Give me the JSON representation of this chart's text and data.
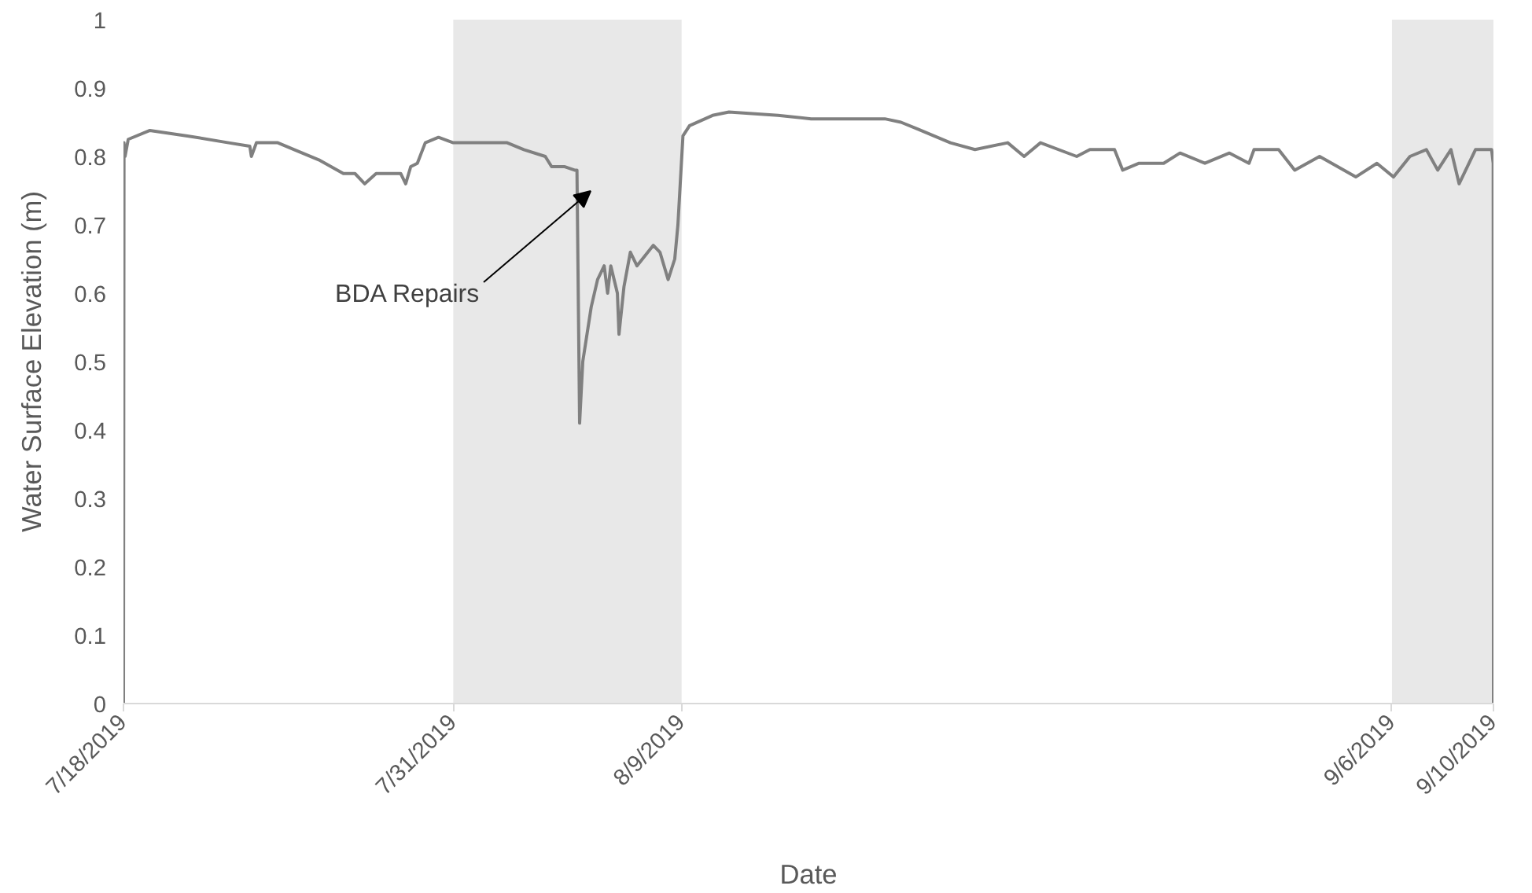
{
  "chart_data": {
    "type": "line",
    "xlabel": "Date",
    "ylabel": "Water Surface Elevation (m)",
    "xlim": [
      "2019-07-18",
      "2019-09-10"
    ],
    "ylim": [
      0,
      1
    ],
    "xticks": [
      {
        "value": "2019-07-18",
        "label": "7/18/2019"
      },
      {
        "value": "2019-07-31",
        "label": "7/31/2019"
      },
      {
        "value": "2019-08-09",
        "label": "8/9/2019"
      },
      {
        "value": "2019-09-06",
        "label": "9/6/2019"
      },
      {
        "value": "2019-09-10",
        "label": "9/10/2019"
      }
    ],
    "yticks": [
      0,
      0.1,
      0.2,
      0.3,
      0.4,
      0.5,
      0.6,
      0.7,
      0.8,
      0.9,
      1
    ],
    "grid": false,
    "marker": "none",
    "line_style": "solid",
    "bands": [
      {
        "axis": "x",
        "from": "2019-07-31",
        "to": "2019-08-09",
        "color": "#e8e8e8"
      },
      {
        "axis": "x",
        "from": "2019-09-06",
        "to": "2019-09-10",
        "color": "#e8e8e8"
      }
    ],
    "annotations": [
      "BDA Repairs"
    ],
    "series": [
      {
        "color": "#808080",
        "x": [
          "2019-07-18T00:00",
          "2019-07-18T00:30",
          "2019-07-18T01:30",
          "2019-07-18T04:30",
          "2019-07-19T01:00",
          "2019-07-20T12:30",
          "2019-07-22T03:30",
          "2019-07-22T23:30",
          "2019-07-23T01:00",
          "2019-07-23T05:45",
          "2019-07-24T02:00",
          "2019-07-24T17:30",
          "2019-07-25T16:45",
          "2019-07-26T16:00",
          "2019-07-27T03:00",
          "2019-07-27T12:15",
          "2019-07-27T23:00",
          "2019-07-28T22:15",
          "2019-07-29T03:00",
          "2019-07-29T07:45",
          "2019-07-29T14:00",
          "2019-07-29T21:30",
          "2019-07-30T10:00",
          "2019-07-31T00:00",
          "2019-08-01T04:00",
          "2019-08-02T03:00",
          "2019-08-02T18:45",
          "2019-08-03T15:00",
          "2019-08-03T21:00",
          "2019-08-04T09:30",
          "2019-08-04T18:45",
          "2019-08-04T21:00",
          "2019-08-04T23:30",
          "2019-08-05T02:30",
          "2019-08-05T10:30",
          "2019-08-05T16:30",
          "2019-08-05T22:45",
          "2019-08-06T02:00",
          "2019-08-06T05:00",
          "2019-08-06T11:15",
          "2019-08-06T12:45",
          "2019-08-06T17:30",
          "2019-08-06T23:30",
          "2019-08-07T05:45",
          "2019-08-07T21:15",
          "2019-08-08T03:30",
          "2019-08-08T11:15",
          "2019-08-08T17:30",
          "2019-08-08T20:30",
          "2019-08-09T01:15",
          "2019-08-09T07:30",
          "2019-08-10T05:15",
          "2019-08-10T20:45",
          "2019-08-12T19:15",
          "2019-08-14T02:30",
          "2019-08-17T00:15",
          "2019-08-17T15:30",
          "2019-08-18T07:15",
          "2019-08-18T22:45",
          "2019-08-19T14:15",
          "2019-08-20T13:30",
          "2019-08-21T20:30",
          "2019-08-22T12:00",
          "2019-08-23T03:30",
          "2019-08-24T13:45",
          "2019-08-25T02:15",
          "2019-08-26T01:30",
          "2019-08-26T09:15",
          "2019-08-27T00:45",
          "2019-08-28T00:00",
          "2019-08-28T15:30",
          "2019-08-29T15:00",
          "2019-08-30T14:15",
          "2019-08-31T08:45",
          "2019-08-31T13:30",
          "2019-09-01T12:45",
          "2019-09-02T04:00",
          "2019-09-03T03:30",
          "2019-09-04T13:45",
          "2019-09-05T09:45",
          "2019-09-06T01:30",
          "2019-09-06T17:00",
          "2019-09-07T08:30",
          "2019-09-07T19:15",
          "2019-09-08T07:45",
          "2019-09-08T15:30",
          "2019-09-09T07:00",
          "2019-09-09T22:15",
          "2019-09-09T23:45",
          "2019-09-10T00:00"
        ],
        "values": [
          0,
          0.82,
          0.8,
          0.825,
          0.838,
          0.83,
          0.82,
          0.815,
          0.8,
          0.82,
          0.82,
          0.81,
          0.795,
          0.775,
          0.775,
          0.76,
          0.775,
          0.775,
          0.76,
          0.785,
          0.79,
          0.82,
          0.828,
          0.82,
          0.82,
          0.82,
          0.81,
          0.8,
          0.785,
          0.785,
          0.78,
          0.78,
          0.41,
          0.5,
          0.58,
          0.62,
          0.64,
          0.6,
          0.64,
          0.6,
          0.54,
          0.61,
          0.66,
          0.64,
          0.67,
          0.66,
          0.62,
          0.65,
          0.7,
          0.83,
          0.845,
          0.86,
          0.865,
          0.86,
          0.855,
          0.855,
          0.85,
          0.84,
          0.83,
          0.82,
          0.81,
          0.82,
          0.8,
          0.82,
          0.8,
          0.81,
          0.81,
          0.78,
          0.79,
          0.79,
          0.805,
          0.79,
          0.805,
          0.79,
          0.81,
          0.81,
          0.78,
          0.8,
          0.77,
          0.79,
          0.77,
          0.8,
          0.81,
          0.78,
          0.81,
          0.76,
          0.81,
          0.81,
          0.79,
          0
        ]
      }
    ]
  }
}
